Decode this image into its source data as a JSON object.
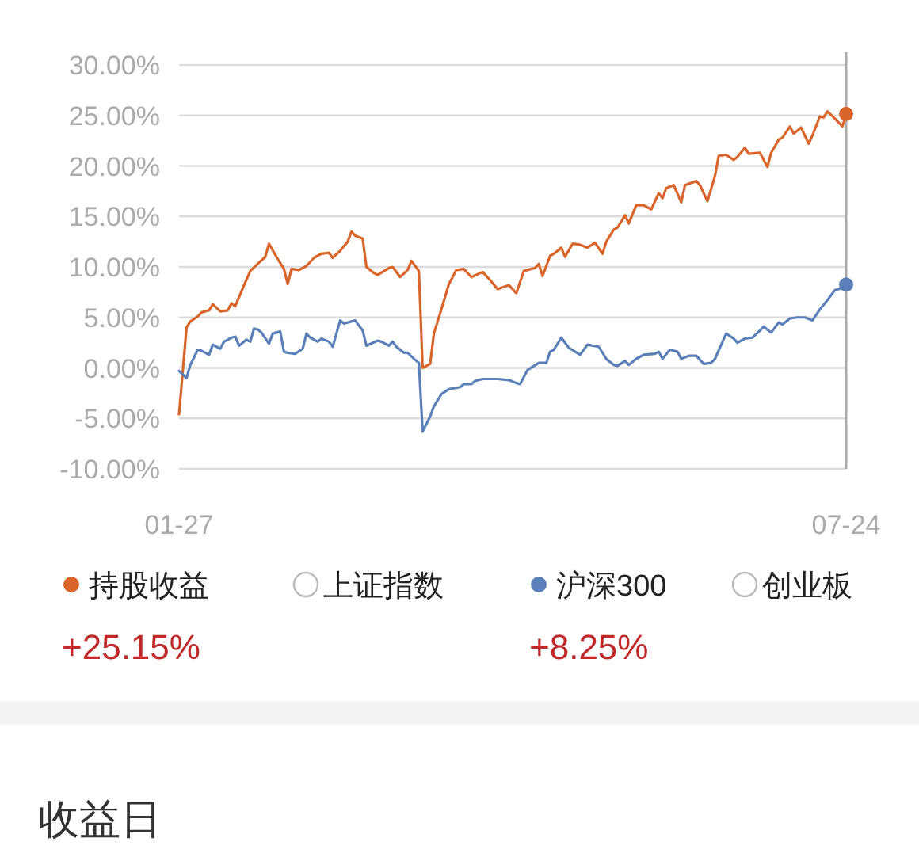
{
  "chart_data": {
    "type": "line",
    "xlim": [
      "--01-27",
      "--07-24"
    ],
    "xticks": [
      {
        "value": "--01-27",
        "label": "01-27"
      },
      {
        "value": "--07-24",
        "label": "07-24"
      }
    ],
    "ylim": [
      -10,
      30
    ],
    "yticks": [
      {
        "value": -10,
        "label": "-10.00%"
      },
      {
        "value": -5,
        "label": "-5.00%"
      },
      {
        "value": 0,
        "label": "0.00%"
      },
      {
        "value": 5,
        "label": "5.00%"
      },
      {
        "value": 10,
        "label": "10.00%"
      },
      {
        "value": 15,
        "label": "15.00%"
      },
      {
        "value": 20,
        "label": "20.00%"
      },
      {
        "value": 25,
        "label": "25.00%"
      },
      {
        "value": 30,
        "label": "30.00%"
      }
    ],
    "grid": "y",
    "legend": "bottom",
    "ref_lines": [
      {
        "axis": "x",
        "value": "--07-24",
        "color": "#aaaaaa"
      }
    ],
    "annotations": [
      "+25.15%",
      "+8.25%",
      "收益日"
    ],
    "series": [
      {
        "name": "持股收益",
        "color": "#d9652b",
        "x": [
          "--01-27",
          "--01-29",
          "--01-30",
          "--02-01",
          "--02-02",
          "--02-04",
          "--02-05",
          "--02-07",
          "--02-09",
          "--02-10",
          "--02-11",
          "--02-13",
          "--02-15",
          "--02-17",
          "--02-19",
          "--02-20",
          "--02-22",
          "--02-24",
          "--02-25",
          "--02-26",
          "--02-28",
          "--03-02",
          "--03-04",
          "--03-06",
          "--03-08",
          "--03-09",
          "--03-11",
          "--03-13",
          "--03-14",
          "--03-15",
          "--03-17",
          "--03-18",
          "--03-20",
          "--03-21",
          "--03-24",
          "--03-25",
          "--03-27",
          "--03-29",
          "--03-30",
          "--04-01",
          "--04-02",
          "--04-04",
          "--04-05",
          "--04-07",
          "--04-09",
          "--04-11",
          "--04-13",
          "--04-15",
          "--04-18",
          "--04-20",
          "--04-22",
          "--04-25",
          "--04-27",
          "--04-29",
          "--05-02",
          "--05-03",
          "--05-04",
          "--05-06",
          "--05-07",
          "--05-09",
          "--05-10",
          "--05-12",
          "--05-14",
          "--05-16",
          "--05-18",
          "--05-20",
          "--05-21",
          "--05-23",
          "--05-24",
          "--05-26",
          "--05-27",
          "--05-29",
          "--05-31",
          "--06-02",
          "--06-04",
          "--06-05",
          "--06-06",
          "--06-08",
          "--06-10",
          "--06-11",
          "--06-14",
          "--06-15",
          "--06-17",
          "--06-19",
          "--06-20",
          "--06-22",
          "--06-24",
          "--06-25",
          "--06-27",
          "--06-28",
          "--07-01",
          "--07-03",
          "--07-04",
          "--07-06",
          "--07-07",
          "--07-09",
          "--07-10",
          "--07-12",
          "--07-14",
          "--07-15",
          "--07-17",
          "--07-18",
          "--07-19",
          "--07-21",
          "--07-23",
          "--07-24"
        ],
        "values": [
          -4.6,
          4.0,
          4.6,
          5.1,
          5.5,
          5.7,
          6.3,
          5.6,
          5.7,
          6.4,
          6.1,
          7.9,
          9.6,
          10.3,
          11.0,
          12.3,
          11.0,
          9.8,
          8.3,
          9.8,
          9.7,
          10.1,
          10.9,
          11.3,
          11.4,
          10.9,
          11.6,
          12.5,
          13.5,
          13.1,
          12.8,
          10.0,
          9.4,
          9.2,
          9.9,
          10.0,
          9.0,
          9.7,
          10.6,
          9.6,
          0.0,
          0.4,
          3.4,
          5.8,
          8.3,
          9.7,
          9.8,
          9.0,
          9.5,
          8.7,
          7.8,
          8.2,
          7.4,
          9.6,
          9.9,
          10.3,
          9.1,
          11.1,
          11.3,
          11.9,
          11.0,
          12.3,
          12.2,
          11.9,
          12.4,
          11.3,
          12.5,
          13.7,
          13.9,
          15.1,
          14.3,
          16.1,
          16.1,
          15.7,
          17.3,
          16.8,
          17.8,
          18.1,
          16.4,
          18.1,
          18.5,
          18.1,
          16.5,
          19.0,
          21.0,
          21.1,
          20.6,
          20.9,
          21.8,
          21.2,
          21.3,
          19.9,
          21.3,
          22.6,
          22.8,
          23.9,
          23.2,
          23.8,
          22.2,
          23.0,
          24.9,
          24.8,
          25.4,
          24.7,
          23.9,
          25.15
        ]
      },
      {
        "name": "上证指数"
      },
      {
        "name": "沪深300",
        "color": "#5b7fb8",
        "x": [
          "--01-27",
          "--01-29",
          "--01-30",
          "--02-01",
          "--02-02",
          "--02-04",
          "--02-05",
          "--02-07",
          "--02-08",
          "--02-10",
          "--02-11",
          "--02-12",
          "--02-14",
          "--02-15",
          "--02-16",
          "--02-17",
          "--02-18",
          "--02-20",
          "--02-21",
          "--02-23",
          "--02-24",
          "--02-25",
          "--02-27",
          "--03-01",
          "--03-02",
          "--03-03",
          "--03-05",
          "--03-06",
          "--03-08",
          "--03-09",
          "--03-11",
          "--03-12",
          "--03-14",
          "--03-15",
          "--03-17",
          "--03-18",
          "--03-21",
          "--03-22",
          "--03-24",
          "--03-25",
          "--03-26",
          "--03-28",
          "--03-29",
          "--03-31",
          "--04-01",
          "--04-02",
          "--04-04",
          "--04-05",
          "--04-07",
          "--04-09",
          "--04-12",
          "--04-13",
          "--04-15",
          "--04-16",
          "--04-18",
          "--04-22",
          "--04-25",
          "--04-27",
          "--04-28",
          "--04-30",
          "--05-03",
          "--05-05",
          "--05-06",
          "--05-07",
          "--05-09",
          "--05-11",
          "--05-14",
          "--05-16",
          "--05-19",
          "--05-21",
          "--05-23",
          "--05-24",
          "--05-26",
          "--05-27",
          "--05-29",
          "--05-31",
          "--06-03",
          "--06-04",
          "--06-05",
          "--06-07",
          "--06-09",
          "--06-10",
          "--06-12",
          "--06-14",
          "--06-16",
          "--06-18",
          "--06-19",
          "--06-22",
          "--06-24",
          "--06-25",
          "--06-27",
          "--06-29",
          "--07-01",
          "--07-02",
          "--07-04",
          "--07-06",
          "--07-07",
          "--07-09",
          "--07-11",
          "--07-13",
          "--07-15",
          "--07-17",
          "--07-19",
          "--07-21",
          "--07-22",
          "--07-24"
        ],
        "values": [
          -0.3,
          -1.0,
          0.3,
          1.8,
          1.7,
          1.3,
          2.3,
          1.9,
          2.6,
          3.0,
          3.1,
          2.2,
          2.8,
          2.6,
          3.9,
          3.8,
          3.5,
          2.4,
          3.4,
          3.6,
          1.6,
          1.5,
          1.4,
          1.9,
          3.4,
          3.0,
          2.6,
          2.9,
          2.6,
          2.1,
          4.7,
          4.4,
          4.6,
          4.7,
          3.7,
          2.2,
          2.7,
          2.6,
          2.2,
          2.6,
          2.1,
          1.5,
          1.5,
          0.8,
          0.5,
          -6.3,
          -4.8,
          -3.8,
          -2.6,
          -2.1,
          -1.9,
          -1.6,
          -1.6,
          -1.3,
          -1.1,
          -1.1,
          -1.2,
          -1.5,
          -1.6,
          -0.2,
          0.5,
          0.5,
          1.6,
          1.8,
          3.0,
          2.0,
          1.3,
          2.3,
          2.1,
          0.9,
          0.3,
          0.2,
          0.7,
          0.3,
          0.9,
          1.3,
          1.4,
          1.6,
          0.9,
          1.8,
          1.6,
          0.9,
          1.2,
          1.2,
          0.4,
          0.5,
          0.9,
          3.4,
          2.9,
          2.5,
          2.9,
          3.0,
          3.7,
          4.1,
          3.5,
          4.5,
          4.3,
          4.9,
          5.0,
          5.0,
          4.7,
          5.8,
          6.7,
          7.7,
          7.8,
          8.25
        ]
      },
      {
        "name": "创业板"
      }
    ]
  }
}
